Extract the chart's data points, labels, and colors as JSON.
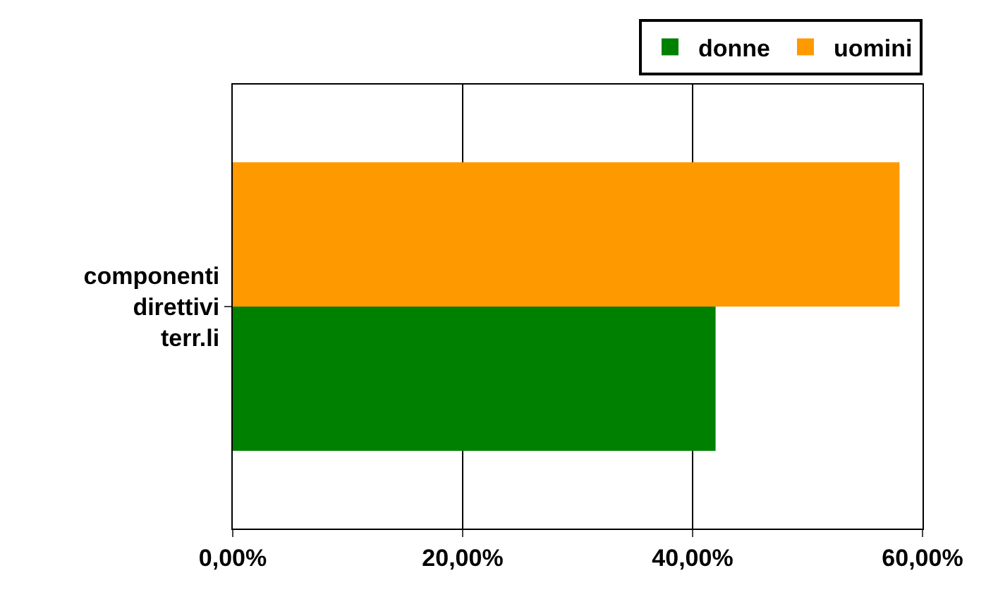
{
  "chart_data": {
    "type": "bar",
    "orientation": "horizontal",
    "categories": [
      "componenti direttivi terr.li"
    ],
    "series": [
      {
        "name": "donne",
        "color": "#008000",
        "values": [
          42
        ]
      },
      {
        "name": "uomini",
        "color": "#ff9900",
        "values": [
          58
        ]
      }
    ],
    "xlim": [
      0,
      60
    ],
    "xticks": [
      {
        "value": 0,
        "label": "0,00%"
      },
      {
        "value": 20,
        "label": "20,00%"
      },
      {
        "value": 40,
        "label": "40,00%"
      },
      {
        "value": 60,
        "label": "60,00%"
      }
    ],
    "grid": "x",
    "legend": "top right"
  }
}
